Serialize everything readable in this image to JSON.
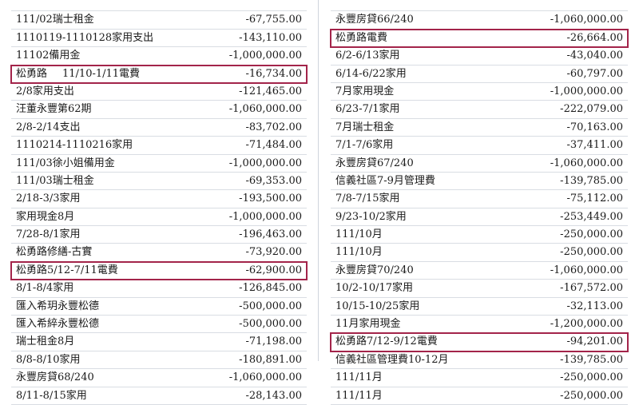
{
  "left_rows": [
    {
      "label": "",
      "amount": "",
      "highlight": false,
      "partial": true
    },
    {
      "label": "111/02瑞士租金",
      "amount": "-67,755.00",
      "highlight": false
    },
    {
      "label": "1110119-1110128家用支出",
      "amount": "-143,110.00",
      "highlight": false
    },
    {
      "label": "11102備用金",
      "amount": "-1,000,000.00",
      "highlight": false
    },
    {
      "label": "松勇路",
      "sub": "11/10-1/11電費",
      "amount": "-16,734.00",
      "highlight": true
    },
    {
      "label": "2/8家用支出",
      "amount": "-121,465.00",
      "highlight": false
    },
    {
      "label": "汪董永豐第62期",
      "amount": "-1,060,000.00",
      "highlight": false
    },
    {
      "label": "2/8-2/14支出",
      "amount": "-83,702.00",
      "highlight": false
    },
    {
      "label": "1110214-1110216家用",
      "amount": "-71,484.00",
      "highlight": false
    },
    {
      "label": "111/03徐小姐備用金",
      "amount": "-1,000,000.00",
      "highlight": false
    },
    {
      "label": "111/03瑞士租金",
      "amount": "-69,353.00",
      "highlight": false
    },
    {
      "label": "2/18-3/3家用",
      "amount": "-193,500.00",
      "highlight": false
    },
    {
      "label": "家用現金8月",
      "amount": "-1,000,000.00",
      "highlight": false
    },
    {
      "label": "7/28-8/1家用",
      "amount": "-196,463.00",
      "highlight": false
    },
    {
      "label": "松勇路修繕-古實",
      "amount": "-73,920.00",
      "highlight": false
    },
    {
      "label": "松勇路5/12-7/11電費",
      "amount": "-62,900.00",
      "highlight": true
    },
    {
      "label": "8/1-8/4家用",
      "amount": "-126,845.00",
      "highlight": false
    },
    {
      "label": "匯入希玥永豐松德",
      "amount": "-500,000.00",
      "highlight": false
    },
    {
      "label": "匯入希綷永豐松德",
      "amount": "-500,000.00",
      "highlight": false
    },
    {
      "label": "瑞士租金8月",
      "amount": "-71,198.00",
      "highlight": false
    },
    {
      "label": "8/8-8/10家用",
      "amount": "-180,891.00",
      "highlight": false
    },
    {
      "label": "永豐房貸68/240",
      "amount": "-1,060,000.00",
      "highlight": false
    },
    {
      "label": "8/11-8/15家用",
      "amount": "-28,143.00",
      "highlight": false
    }
  ],
  "right_rows": [
    {
      "label": "",
      "amount": "",
      "highlight": false,
      "partial": true
    },
    {
      "label": "永豐房貸66/240",
      "amount": "-1,060,000.00",
      "highlight": false
    },
    {
      "label": "松勇路電費",
      "amount": "-26,664.00",
      "highlight": true
    },
    {
      "label": "6/2-6/13家用",
      "amount": "-43,040.00",
      "highlight": false
    },
    {
      "label": "6/14-6/22家用",
      "amount": "-60,797.00",
      "highlight": false
    },
    {
      "label": "7月家用現金",
      "amount": "-1,000,000.00",
      "highlight": false
    },
    {
      "label": "6/23-7/1家用",
      "amount": "-222,079.00",
      "highlight": false
    },
    {
      "label": "7月瑞士租金",
      "amount": "-70,163.00",
      "highlight": false
    },
    {
      "label": "7/1-7/6家用",
      "amount": "-37,411.00",
      "highlight": false
    },
    {
      "label": "永豐房貸67/240",
      "amount": "-1,060,000.00",
      "highlight": false
    },
    {
      "label": "信義社區7-9月管理費",
      "amount": "-139,785.00",
      "highlight": false
    },
    {
      "label": "7/8-7/15家用",
      "amount": "-75,112.00",
      "highlight": false
    },
    {
      "label": "9/23-10/2家用",
      "amount": "-253,449.00",
      "highlight": false
    },
    {
      "label": "111/10月",
      "amount": "-250,000.00",
      "highlight": false
    },
    {
      "label": "111/10月",
      "amount": "-250,000.00",
      "highlight": false
    },
    {
      "label": "永豐房貸70/240",
      "amount": "-1,060,000.00",
      "highlight": false
    },
    {
      "label": "10/2-10/17家用",
      "amount": "-167,572.00",
      "highlight": false
    },
    {
      "label": "10/15-10/25家用",
      "amount": "-32,113.00",
      "highlight": false
    },
    {
      "label": "11月家用現金",
      "amount": "-1,200,000.00",
      "highlight": false
    },
    {
      "label": "松勇路7/12-9/12電費",
      "amount": "-94,201.00",
      "highlight": true
    },
    {
      "label": "信義社區管理費10-12月",
      "amount": "-139,785.00",
      "highlight": false
    },
    {
      "label": "111/11月",
      "amount": "-250,000.00",
      "highlight": false
    },
    {
      "label": "111/11月",
      "amount": "-250,000.00",
      "highlight": false
    }
  ],
  "colors": {
    "highlight_border": "#a3244a",
    "gridline": "#d9dde3"
  }
}
